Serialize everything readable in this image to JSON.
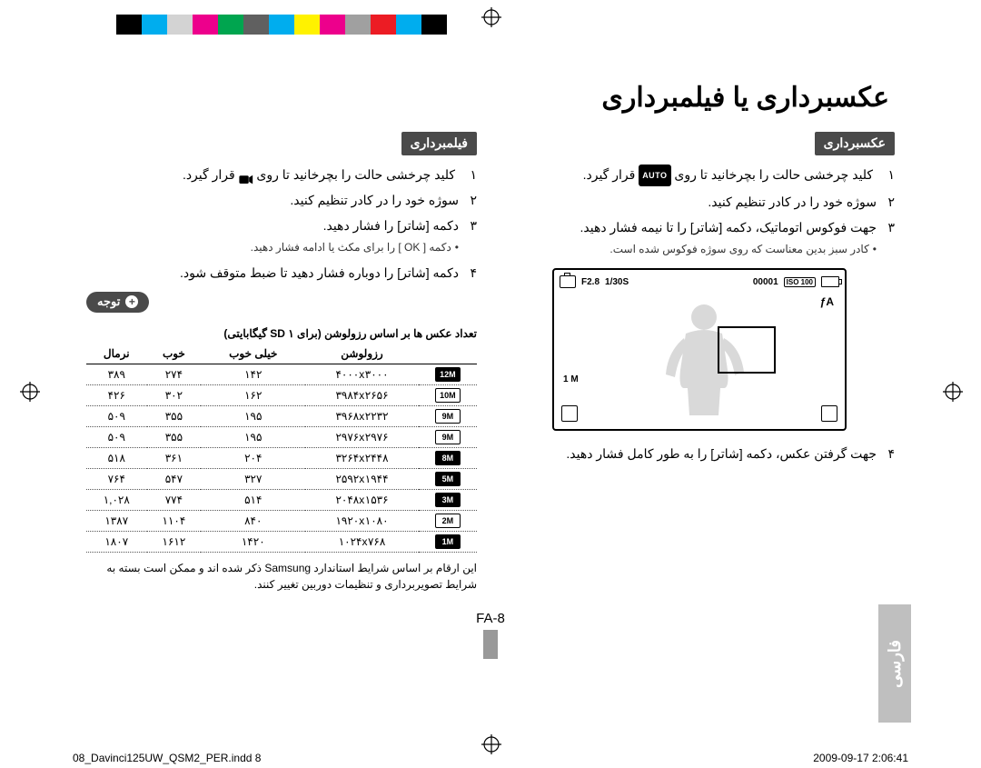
{
  "colorbar": [
    "#ffffff",
    "#000000",
    "#00adee",
    "#d3d3d3",
    "#ed008c",
    "#00a54f",
    "#606060",
    "#00adee",
    "#fff200",
    "#ed008c",
    "#a0a0a0",
    "#ec1c24",
    "#00adee",
    "#000000",
    "#ffffff"
  ],
  "main_title": "عکسبرداری یا فیلمبرداری",
  "right": {
    "heading": "عکسبرداری",
    "step1_pre": "کلید چرخشی حالت را بچرخانید تا روی",
    "step1_auto": "AUTO",
    "step1_post": "قرار گیرد.",
    "step2": "سوژه خود را در کادر تنظیم کنید.",
    "step3": "جهت فوکوس اتوماتیک، دکمه [شاتر] را تا نیمه فشار دهید.",
    "step3_sub": "کادر سبز بدین معناست که روی سوژه فوکوس شده است.",
    "step4": "جهت گرفتن عکس، دکمه [شاتر] را به طور کامل فشار دهید.",
    "lcd": {
      "f": "F2.8",
      "shutter": "1/30S",
      "count": "00001",
      "iso": "ISO 100",
      "flash": "ƒA",
      "one_m": "1 M"
    }
  },
  "left": {
    "heading": "فیلمبرداری",
    "step1_pre": "کلید چرخشی حالت را بچرخانید تا روی",
    "step1_post": "قرار گیرد.",
    "step2": "سوژه خود را در کادر تنظیم کنید.",
    "step3": "دکمه [شاتر] را فشار دهید.",
    "step3_sub": "دکمه [ OK ] را برای مکث یا ادامه فشار دهید.",
    "step4": "دکمه [شاتر] را دوباره فشار دهید تا ضبط متوقف شود.",
    "note_label": "توجه",
    "table_caption": "تعداد عکس ها بر اساس رزولوشن  (برای SD ۱ گیگابایتی)",
    "columns": [
      "",
      "رزولوشن",
      "خیلی خوب",
      "خوب",
      "نرمال"
    ],
    "rows": [
      {
        "ico": "12M",
        "solid": true,
        "res": "۴۰۰۰x۳۰۰۰",
        "sf": "۱۴۲",
        "f": "۲۷۴",
        "n": "۳۸۹"
      },
      {
        "ico": "10M",
        "solid": false,
        "res": "۳۹۸۴x۲۶۵۶",
        "sf": "۱۶۲",
        "f": "۳۰۲",
        "n": "۴۲۶"
      },
      {
        "ico": "9M",
        "solid": false,
        "res": "۳۹۶۸x۲۲۳۲",
        "sf": "۱۹۵",
        "f": "۳۵۵",
        "n": "۵۰۹"
      },
      {
        "ico": "9M",
        "solid": false,
        "res": "۲۹۷۶x۲۹۷۶",
        "sf": "۱۹۵",
        "f": "۳۵۵",
        "n": "۵۰۹"
      },
      {
        "ico": "8M",
        "solid": true,
        "res": "۳۲۶۴x۲۴۴۸",
        "sf": "۲۰۴",
        "f": "۳۶۱",
        "n": "۵۱۸"
      },
      {
        "ico": "5M",
        "solid": true,
        "res": "۲۵۹۲x۱۹۴۴",
        "sf": "۳۲۷",
        "f": "۵۴۷",
        "n": "۷۶۴"
      },
      {
        "ico": "3M",
        "solid": true,
        "res": "۲۰۴۸x۱۵۳۶",
        "sf": "۵۱۴",
        "f": "۷۷۴",
        "n": "۱,۰۲۸"
      },
      {
        "ico": "2M",
        "solid": false,
        "res": "۱۹۲۰x۱۰۸۰",
        "sf": "۸۴۰",
        "f": "۱۱۰۴",
        "n": "۱۳۸۷"
      },
      {
        "ico": "1M",
        "solid": true,
        "res": "۱۰۲۴x۷۶۸",
        "sf": "۱۴۲۰",
        "f": "۱۶۱۲",
        "n": "۱۸۰۷"
      }
    ],
    "footnote": "این ارقام بر اساس شرایط استاندارد Samsung ذکر شده اند و ممکن است بسته به شرایط تصویربرداری و تنظیمات دوربین تغییر کنند."
  },
  "side_tab": "فارسی",
  "page_num": "FA-8",
  "footer_left": "08_Davinci125UW_QSM2_PER.indd   8",
  "footer_right": "2009-09-17   2:06:41"
}
